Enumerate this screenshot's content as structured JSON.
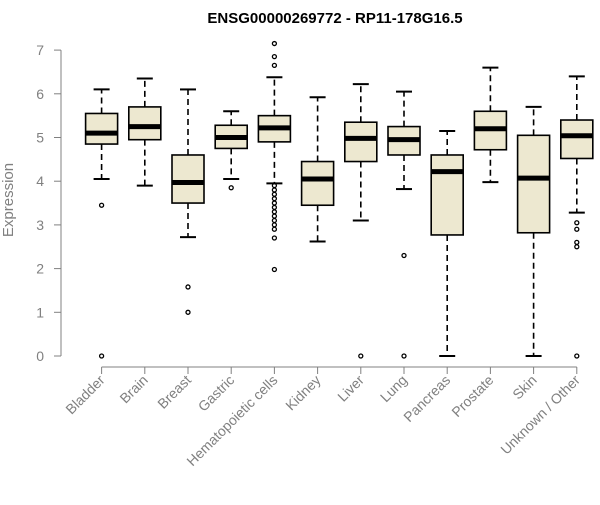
{
  "chart_data": {
    "type": "box",
    "title": "ENSG00000269772 - RP11-178G16.5",
    "xlabel": "",
    "ylabel": "Expression",
    "ylim": [
      0,
      7.2
    ],
    "yticks": [
      0,
      1,
      2,
      3,
      4,
      5,
      6,
      7
    ],
    "grid": false,
    "box_fill": "#ede8d0",
    "box_stroke": "#000000",
    "axis_color": "#808080",
    "categories": [
      "Bladder",
      "Brain",
      "Breast",
      "Gastric",
      "Hematopoietic cells",
      "Kidney",
      "Liver",
      "Lung",
      "Pancreas",
      "Prostate",
      "Skin",
      "Unknown / Other"
    ],
    "boxes": [
      {
        "category": "Bladder",
        "whisker_low": 4.05,
        "q1": 4.85,
        "median": 5.1,
        "q3": 5.55,
        "whisker_high": 6.1,
        "outliers": [
          3.45,
          0.0
        ]
      },
      {
        "category": "Brain",
        "whisker_low": 3.9,
        "q1": 4.95,
        "median": 5.25,
        "q3": 5.7,
        "whisker_high": 6.35,
        "outliers": []
      },
      {
        "category": "Breast",
        "whisker_low": 2.72,
        "q1": 3.5,
        "median": 3.97,
        "q3": 4.6,
        "whisker_high": 6.1,
        "outliers": [
          1.58,
          1.0
        ]
      },
      {
        "category": "Gastric",
        "whisker_low": 4.05,
        "q1": 4.75,
        "median": 5.0,
        "q3": 5.28,
        "whisker_high": 5.6,
        "outliers": [
          3.85
        ]
      },
      {
        "category": "Hematopoietic cells",
        "whisker_low": 3.95,
        "q1": 4.9,
        "median": 5.22,
        "q3": 5.5,
        "whisker_high": 6.38,
        "outliers": [
          7.15,
          6.85,
          6.65,
          3.9,
          3.8,
          3.7,
          3.6,
          3.5,
          3.4,
          3.3,
          3.2,
          3.1,
          3.0,
          2.9,
          2.7,
          1.98
        ]
      },
      {
        "category": "Kidney",
        "whisker_low": 2.62,
        "q1": 3.45,
        "median": 4.05,
        "q3": 4.45,
        "whisker_high": 5.92,
        "outliers": []
      },
      {
        "category": "Liver",
        "whisker_low": 3.1,
        "q1": 4.45,
        "median": 4.98,
        "q3": 5.35,
        "whisker_high": 6.22,
        "outliers": [
          0.0
        ]
      },
      {
        "category": "Lung",
        "whisker_low": 3.82,
        "q1": 4.6,
        "median": 4.95,
        "q3": 5.25,
        "whisker_high": 6.05,
        "outliers": [
          2.3,
          0.0
        ]
      },
      {
        "category": "Pancreas",
        "whisker_low": 0.0,
        "q1": 2.77,
        "median": 4.22,
        "q3": 4.6,
        "whisker_high": 5.15,
        "outliers": []
      },
      {
        "category": "Prostate",
        "whisker_low": 3.98,
        "q1": 4.72,
        "median": 5.2,
        "q3": 5.6,
        "whisker_high": 6.6,
        "outliers": []
      },
      {
        "category": "Skin",
        "whisker_low": 0.0,
        "q1": 2.82,
        "median": 4.07,
        "q3": 5.05,
        "whisker_high": 5.7,
        "outliers": []
      },
      {
        "category": "Unknown / Other",
        "whisker_low": 3.28,
        "q1": 4.52,
        "median": 5.04,
        "q3": 5.4,
        "whisker_high": 6.4,
        "outliers": [
          3.05,
          2.9,
          2.6,
          2.5,
          0.0
        ]
      }
    ]
  }
}
